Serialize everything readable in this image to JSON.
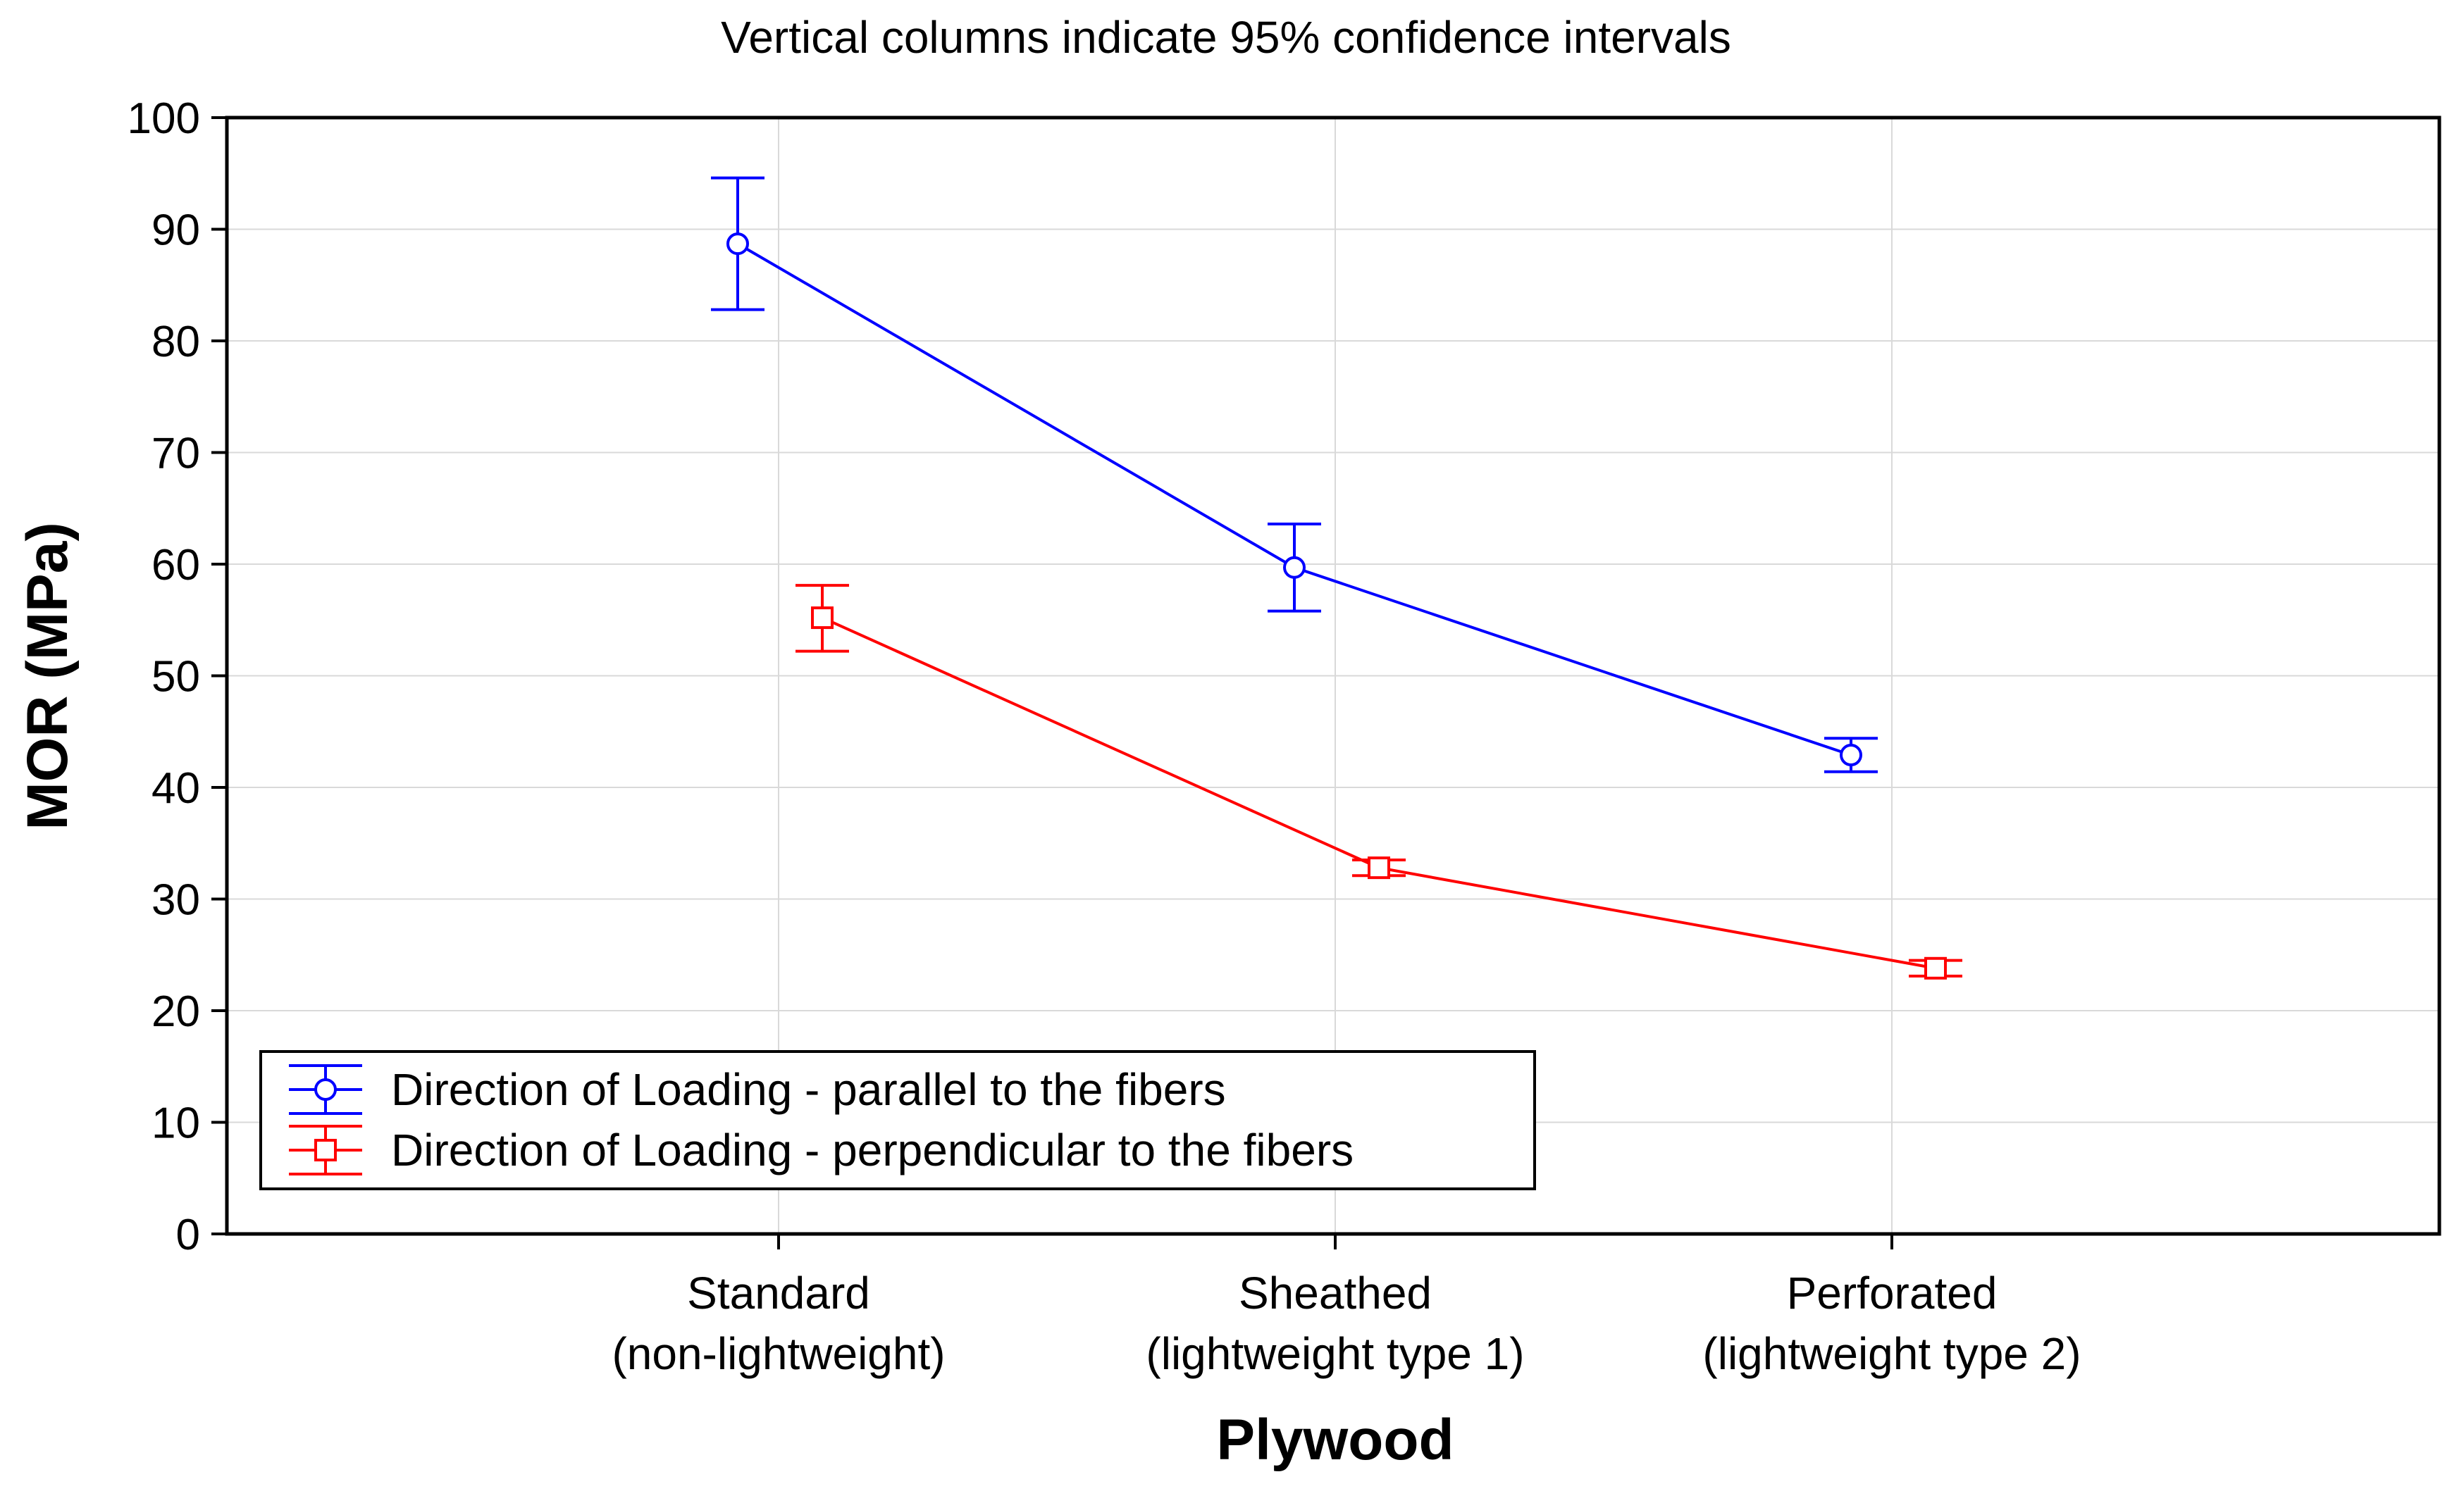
{
  "chart_data": {
    "type": "line",
    "title": "Vertical columns indicate 95% confidence intervals",
    "xlabel": "Plywood",
    "ylabel": "MOR (MPa)",
    "ylim": [
      0,
      100
    ],
    "yticks": [
      0,
      10,
      20,
      30,
      40,
      50,
      60,
      70,
      80,
      90,
      100
    ],
    "categories": [
      [
        "Standard",
        "(non-lightweight)"
      ],
      [
        "Sheathed",
        "(lightweight type 1)"
      ],
      [
        "Perforated",
        "(lightweight type 2)"
      ]
    ],
    "grid": true,
    "legend_position": "bottom-left",
    "series": [
      {
        "name": "Direction of Loading - parallel to the fibers",
        "color": "#0000ff",
        "marker": "circle",
        "offset": "left",
        "values": [
          88.7,
          59.7,
          42.9
        ],
        "ci_low": [
          82.8,
          55.8,
          41.4
        ],
        "ci_high": [
          94.6,
          63.6,
          44.4
        ]
      },
      {
        "name": "Direction of Loading - perpendicular to the fibers",
        "color": "#ff0000",
        "marker": "square",
        "offset": "right",
        "values": [
          55.2,
          32.8,
          23.8
        ],
        "ci_low": [
          52.2,
          32.1,
          23.1
        ],
        "ci_high": [
          58.1,
          33.5,
          24.5
        ]
      }
    ]
  }
}
